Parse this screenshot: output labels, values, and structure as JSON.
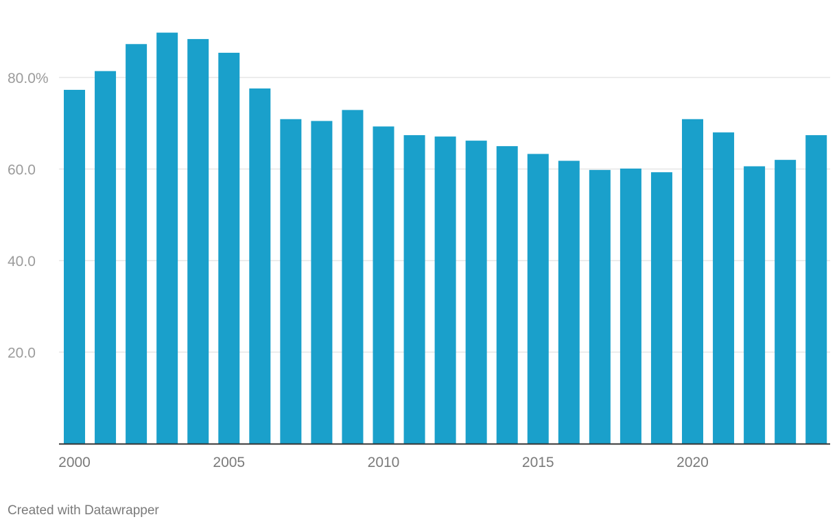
{
  "chart_data": {
    "type": "bar",
    "title": "",
    "xlabel": "",
    "ylabel": "",
    "categories": [
      "2000",
      "2001",
      "2002",
      "2003",
      "2004",
      "2005",
      "2006",
      "2007",
      "2008",
      "2009",
      "2010",
      "2011",
      "2012",
      "2013",
      "2014",
      "2015",
      "2016",
      "2017",
      "2018",
      "2019",
      "2020",
      "2021",
      "2022",
      "2023",
      "2024"
    ],
    "values": [
      77.3,
      81.4,
      87.3,
      89.8,
      88.4,
      85.4,
      77.6,
      70.9,
      70.5,
      72.9,
      69.3,
      67.4,
      67.1,
      66.2,
      65.0,
      63.3,
      61.8,
      59.8,
      60.1,
      59.3,
      70.9,
      68.0,
      60.6,
      62.0,
      67.4
    ],
    "ylim": [
      0,
      90
    ],
    "y_ticks": [
      {
        "value": 20,
        "label": "20.0"
      },
      {
        "value": 40,
        "label": "40.0"
      },
      {
        "value": 60,
        "label": "60.0"
      },
      {
        "value": 80,
        "label": "80.0%"
      }
    ],
    "x_tick_labels": [
      "2000",
      "2005",
      "2010",
      "2015",
      "2020"
    ],
    "grid": true,
    "bar_color": "#1aa0cb",
    "gridline_color": "#e6e6e6",
    "axis_color": "#333333",
    "tick_label_color": "#9b9b9b",
    "x_tick_label_color": "#7a7a7a"
  },
  "footer": {
    "credit": "Created with Datawrapper"
  }
}
